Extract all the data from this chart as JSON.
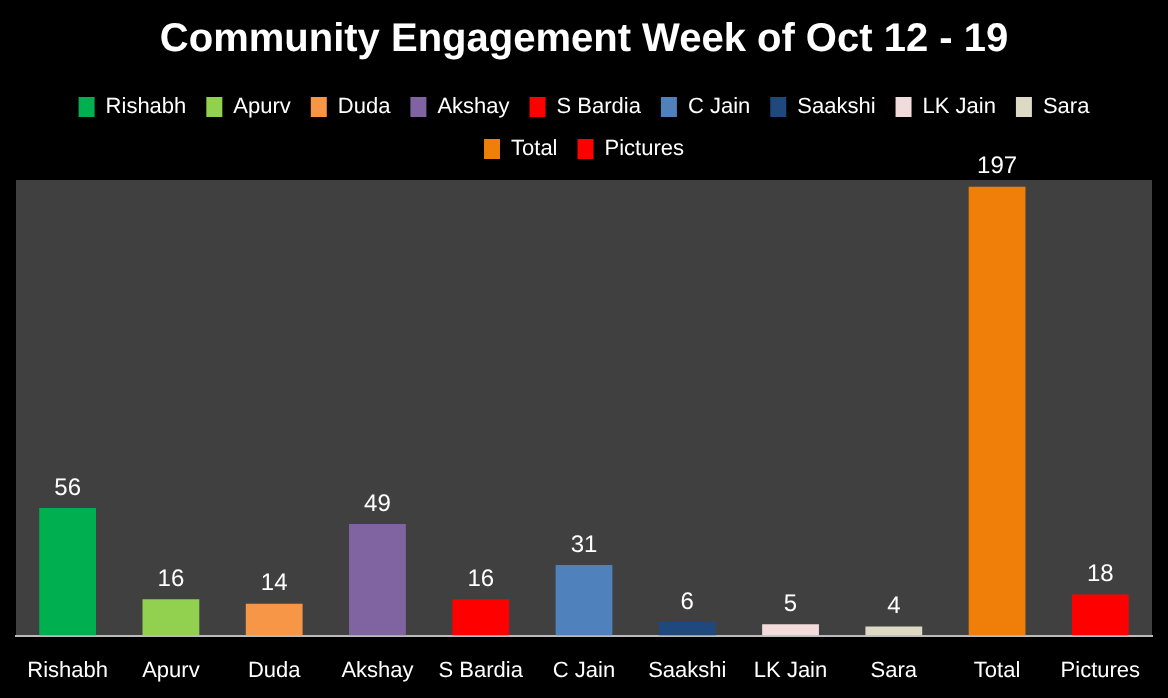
{
  "chart_data": {
    "type": "bar",
    "title": "Community Engagement Week of Oct 12 - 19",
    "categories": [
      "Rishabh",
      "Apurv",
      "Duda",
      "Akshay",
      "S Bardia",
      "C Jain",
      "Saakshi",
      "LK Jain",
      "Sara",
      "Total",
      "Pictures"
    ],
    "series": [
      {
        "name": "Rishabh",
        "color": "#00b050",
        "values": [
          56,
          null,
          null,
          null,
          null,
          null,
          null,
          null,
          null,
          null,
          null
        ]
      },
      {
        "name": "Apurv",
        "color": "#92d050",
        "values": [
          null,
          16,
          null,
          null,
          null,
          null,
          null,
          null,
          null,
          null,
          null
        ]
      },
      {
        "name": "Duda",
        "color": "#f79646",
        "values": [
          null,
          null,
          14,
          null,
          null,
          null,
          null,
          null,
          null,
          null,
          null
        ]
      },
      {
        "name": "Akshay",
        "color": "#8064a2",
        "values": [
          null,
          null,
          null,
          49,
          null,
          null,
          null,
          null,
          null,
          null,
          null
        ]
      },
      {
        "name": "S Bardia",
        "color": "#ff0000",
        "values": [
          null,
          null,
          null,
          null,
          16,
          null,
          null,
          null,
          null,
          null,
          null
        ]
      },
      {
        "name": "C Jain",
        "color": "#4f81bd",
        "values": [
          null,
          null,
          null,
          null,
          null,
          31,
          null,
          null,
          null,
          null,
          null
        ]
      },
      {
        "name": "Saakshi",
        "color": "#1f497d",
        "values": [
          null,
          null,
          null,
          null,
          null,
          null,
          6,
          null,
          null,
          null,
          null
        ]
      },
      {
        "name": "LK Jain",
        "color": "#f2dcdb",
        "values": [
          null,
          null,
          null,
          null,
          null,
          null,
          null,
          5,
          null,
          null,
          null
        ]
      },
      {
        "name": "Sara",
        "color": "#ddd9c4",
        "values": [
          null,
          null,
          null,
          null,
          null,
          null,
          null,
          null,
          4,
          null,
          null
        ]
      },
      {
        "name": "Total",
        "color": "#f07f09",
        "values": [
          null,
          null,
          null,
          null,
          null,
          null,
          null,
          null,
          null,
          197,
          null
        ]
      },
      {
        "name": "Pictures",
        "color": "#ff0000",
        "values": [
          null,
          null,
          null,
          null,
          null,
          null,
          null,
          null,
          null,
          null,
          18
        ]
      }
    ],
    "data_labels": true,
    "legend": "top",
    "grid": false
  }
}
